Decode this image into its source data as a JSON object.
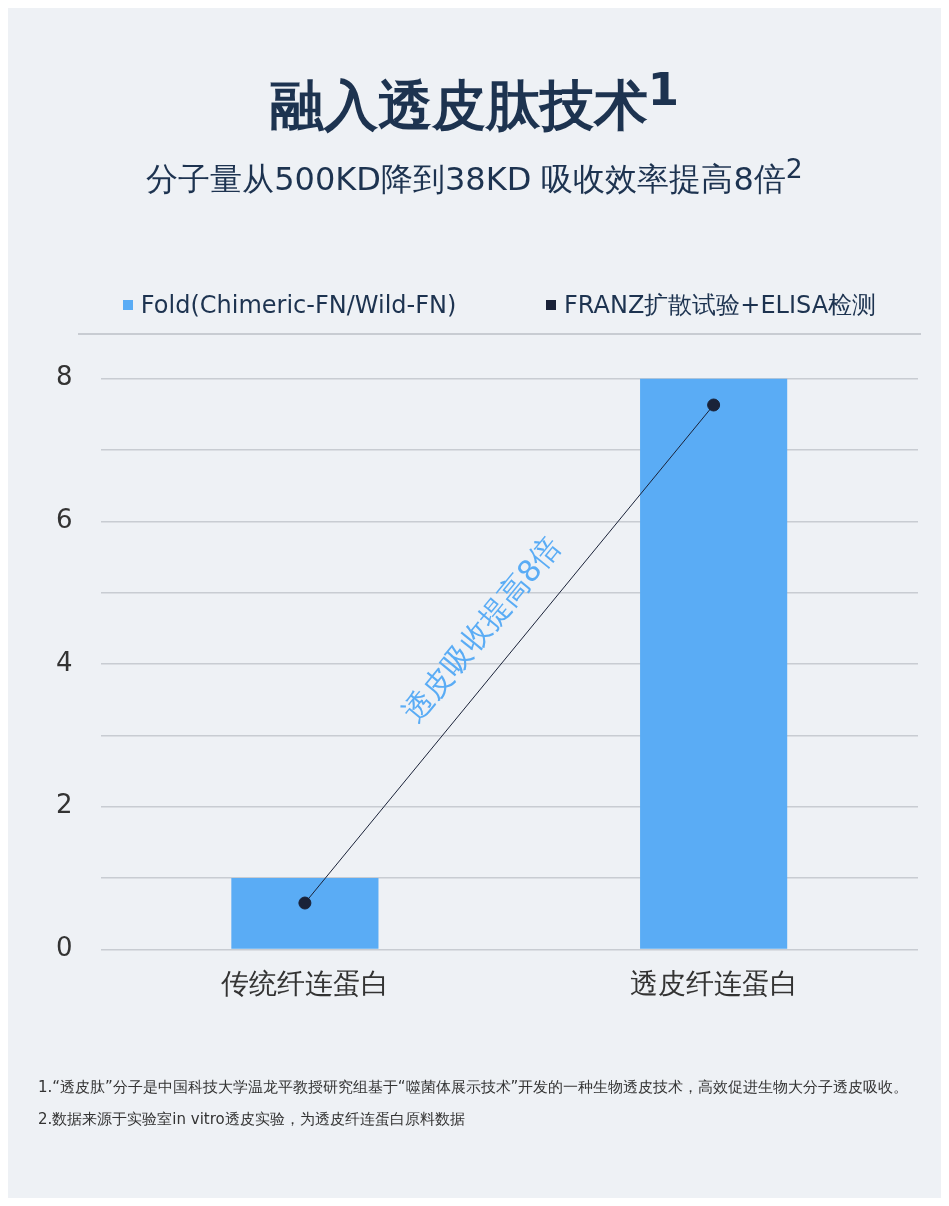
{
  "chart_data": {
    "type": "bar",
    "title": "融入透皮肽技术$^{1}$",
    "subtitle": "分子量从500KD降到38KD 吸收效率提高8倍$^{2}$",
    "categories": [
      "传统纤连蛋白",
      "透皮纤连蛋白"
    ],
    "series": [
      {
        "name": "Fold(Chimeric-FN/Wild-FN)",
        "color": "#5aacf5",
        "values": [
          1,
          8
        ]
      },
      {
        "name": "FRANZ扩散试验+ELISA检测",
        "type": "line",
        "color": "#1a2238",
        "values": [
          0.65,
          7.63
        ],
        "marker": "circle"
      }
    ],
    "ylim": [
      0,
      8
    ],
    "yticks": [
      0,
      {
        "value": 1,
        "label": null
      },
      2,
      {
        "value": 3,
        "label": null
      },
      4,
      {
        "value": 5,
        "label": null
      },
      6,
      {
        "value": 7,
        "label": null
      },
      8
    ],
    "grid": "y",
    "legend": "top",
    "annotations": [
      "透皮吸收提高8倍",
      "1.“透皮肽”分子是中国科技大学温龙平教授研究组基于“噬菌体展示技术”开发的一种生物透皮技术，高效促进生物大分子透皮吸收。",
      "2.数据来源于实验室in vitro透皮实验，为透皮纤连蛋白原料数据"
    ]
  }
}
